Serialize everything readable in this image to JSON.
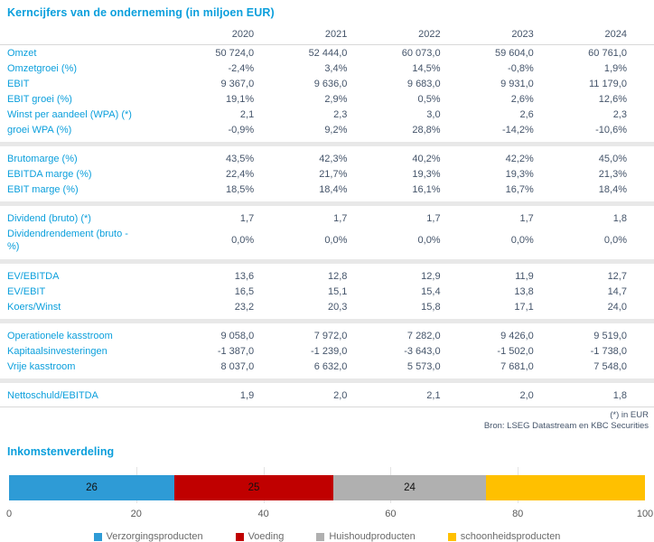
{
  "table": {
    "title": "Kerncijfers van de onderneming (in miljoen EUR)",
    "years": [
      "2020",
      "2021",
      "2022",
      "2023",
      "2024"
    ],
    "groups": [
      {
        "rows": [
          {
            "label": "Omzet",
            "values": [
              "50 724,0",
              "52 444,0",
              "60 073,0",
              "59 604,0",
              "60 761,0"
            ]
          },
          {
            "label": "Omzetgroei (%)",
            "values": [
              "-2,4%",
              "3,4%",
              "14,5%",
              "-0,8%",
              "1,9%"
            ]
          },
          {
            "label": "EBIT",
            "values": [
              "9 367,0",
              "9 636,0",
              "9 683,0",
              "9 931,0",
              "11 179,0"
            ]
          },
          {
            "label": "EBIT groei (%)",
            "values": [
              "19,1%",
              "2,9%",
              "0,5%",
              "2,6%",
              "12,6%"
            ]
          },
          {
            "label": "Winst per aandeel (WPA) (*)",
            "values": [
              "2,1",
              "2,3",
              "3,0",
              "2,6",
              "2,3"
            ]
          },
          {
            "label": "groei WPA (%)",
            "values": [
              "-0,9%",
              "9,2%",
              "28,8%",
              "-14,2%",
              "-10,6%"
            ]
          }
        ]
      },
      {
        "rows": [
          {
            "label": "Brutomarge (%)",
            "values": [
              "43,5%",
              "42,3%",
              "40,2%",
              "42,2%",
              "45,0%"
            ]
          },
          {
            "label": "EBITDA marge (%)",
            "values": [
              "22,4%",
              "21,7%",
              "19,3%",
              "19,3%",
              "21,3%"
            ]
          },
          {
            "label": "EBIT marge (%)",
            "values": [
              "18,5%",
              "18,4%",
              "16,1%",
              "16,7%",
              "18,4%"
            ]
          }
        ]
      },
      {
        "rows": [
          {
            "label": "Dividend (bruto) (*)",
            "values": [
              "1,7",
              "1,7",
              "1,7",
              "1,7",
              "1,8"
            ]
          },
          {
            "label": "Dividendrendement (bruto - %)",
            "wrap": true,
            "values": [
              "0,0%",
              "0,0%",
              "0,0%",
              "0,0%",
              "0,0%"
            ]
          }
        ]
      },
      {
        "rows": [
          {
            "label": "EV/EBITDA",
            "values": [
              "13,6",
              "12,8",
              "12,9",
              "11,9",
              "12,7"
            ]
          },
          {
            "label": "EV/EBIT",
            "values": [
              "16,5",
              "15,1",
              "15,4",
              "13,8",
              "14,7"
            ]
          },
          {
            "label": "Koers/Winst",
            "values": [
              "23,2",
              "20,3",
              "15,8",
              "17,1",
              "24,0"
            ]
          }
        ]
      },
      {
        "rows": [
          {
            "label": "Operationele kasstroom",
            "values": [
              "9 058,0",
              "7 972,0",
              "7 282,0",
              "9 426,0",
              "9 519,0"
            ]
          },
          {
            "label": "Kapitaalsinvesteringen",
            "values": [
              "-1 387,0",
              "-1 239,0",
              "-3 643,0",
              "-1 502,0",
              "-1 738,0"
            ]
          },
          {
            "label": "Vrije kasstroom",
            "values": [
              "8 037,0",
              "6 632,0",
              "5 573,0",
              "7 681,0",
              "7 548,0"
            ]
          }
        ]
      },
      {
        "rows": [
          {
            "label": "Nettoschuld/EBITDA",
            "values": [
              "1,9",
              "2,0",
              "2,1",
              "2,0",
              "1,8"
            ]
          }
        ]
      }
    ],
    "footnotes": [
      "(*) in EUR",
      "Bron: LSEG Datastream en KBC Securities"
    ]
  },
  "chart": {
    "title": "Inkomstenverdeling"
  },
  "chart_data": {
    "type": "bar",
    "orientation": "horizontal",
    "stacked": true,
    "title": "Inkomstenverdeling",
    "series": [
      {
        "name": "Verzorgingsproducten",
        "value": 26,
        "color": "#2E9BD6",
        "show_label": true
      },
      {
        "name": "Voeding",
        "value": 25,
        "color": "#C00000",
        "show_label": true
      },
      {
        "name": "Huishoudproducten",
        "value": 24,
        "color": "#B0B0B0",
        "show_label": true
      },
      {
        "name": "schoonheidsproducten",
        "value": 25,
        "color": "#FFC000",
        "show_label": false
      }
    ],
    "xlim": [
      0,
      100
    ],
    "xticks": [
      0,
      20,
      40,
      60,
      80,
      100
    ],
    "gridlines": [
      20,
      40,
      60,
      80
    ],
    "legend_position": "bottom-center",
    "colors": {
      "accent_blue": "#0B9FDC",
      "value_text": "#44546A"
    }
  }
}
